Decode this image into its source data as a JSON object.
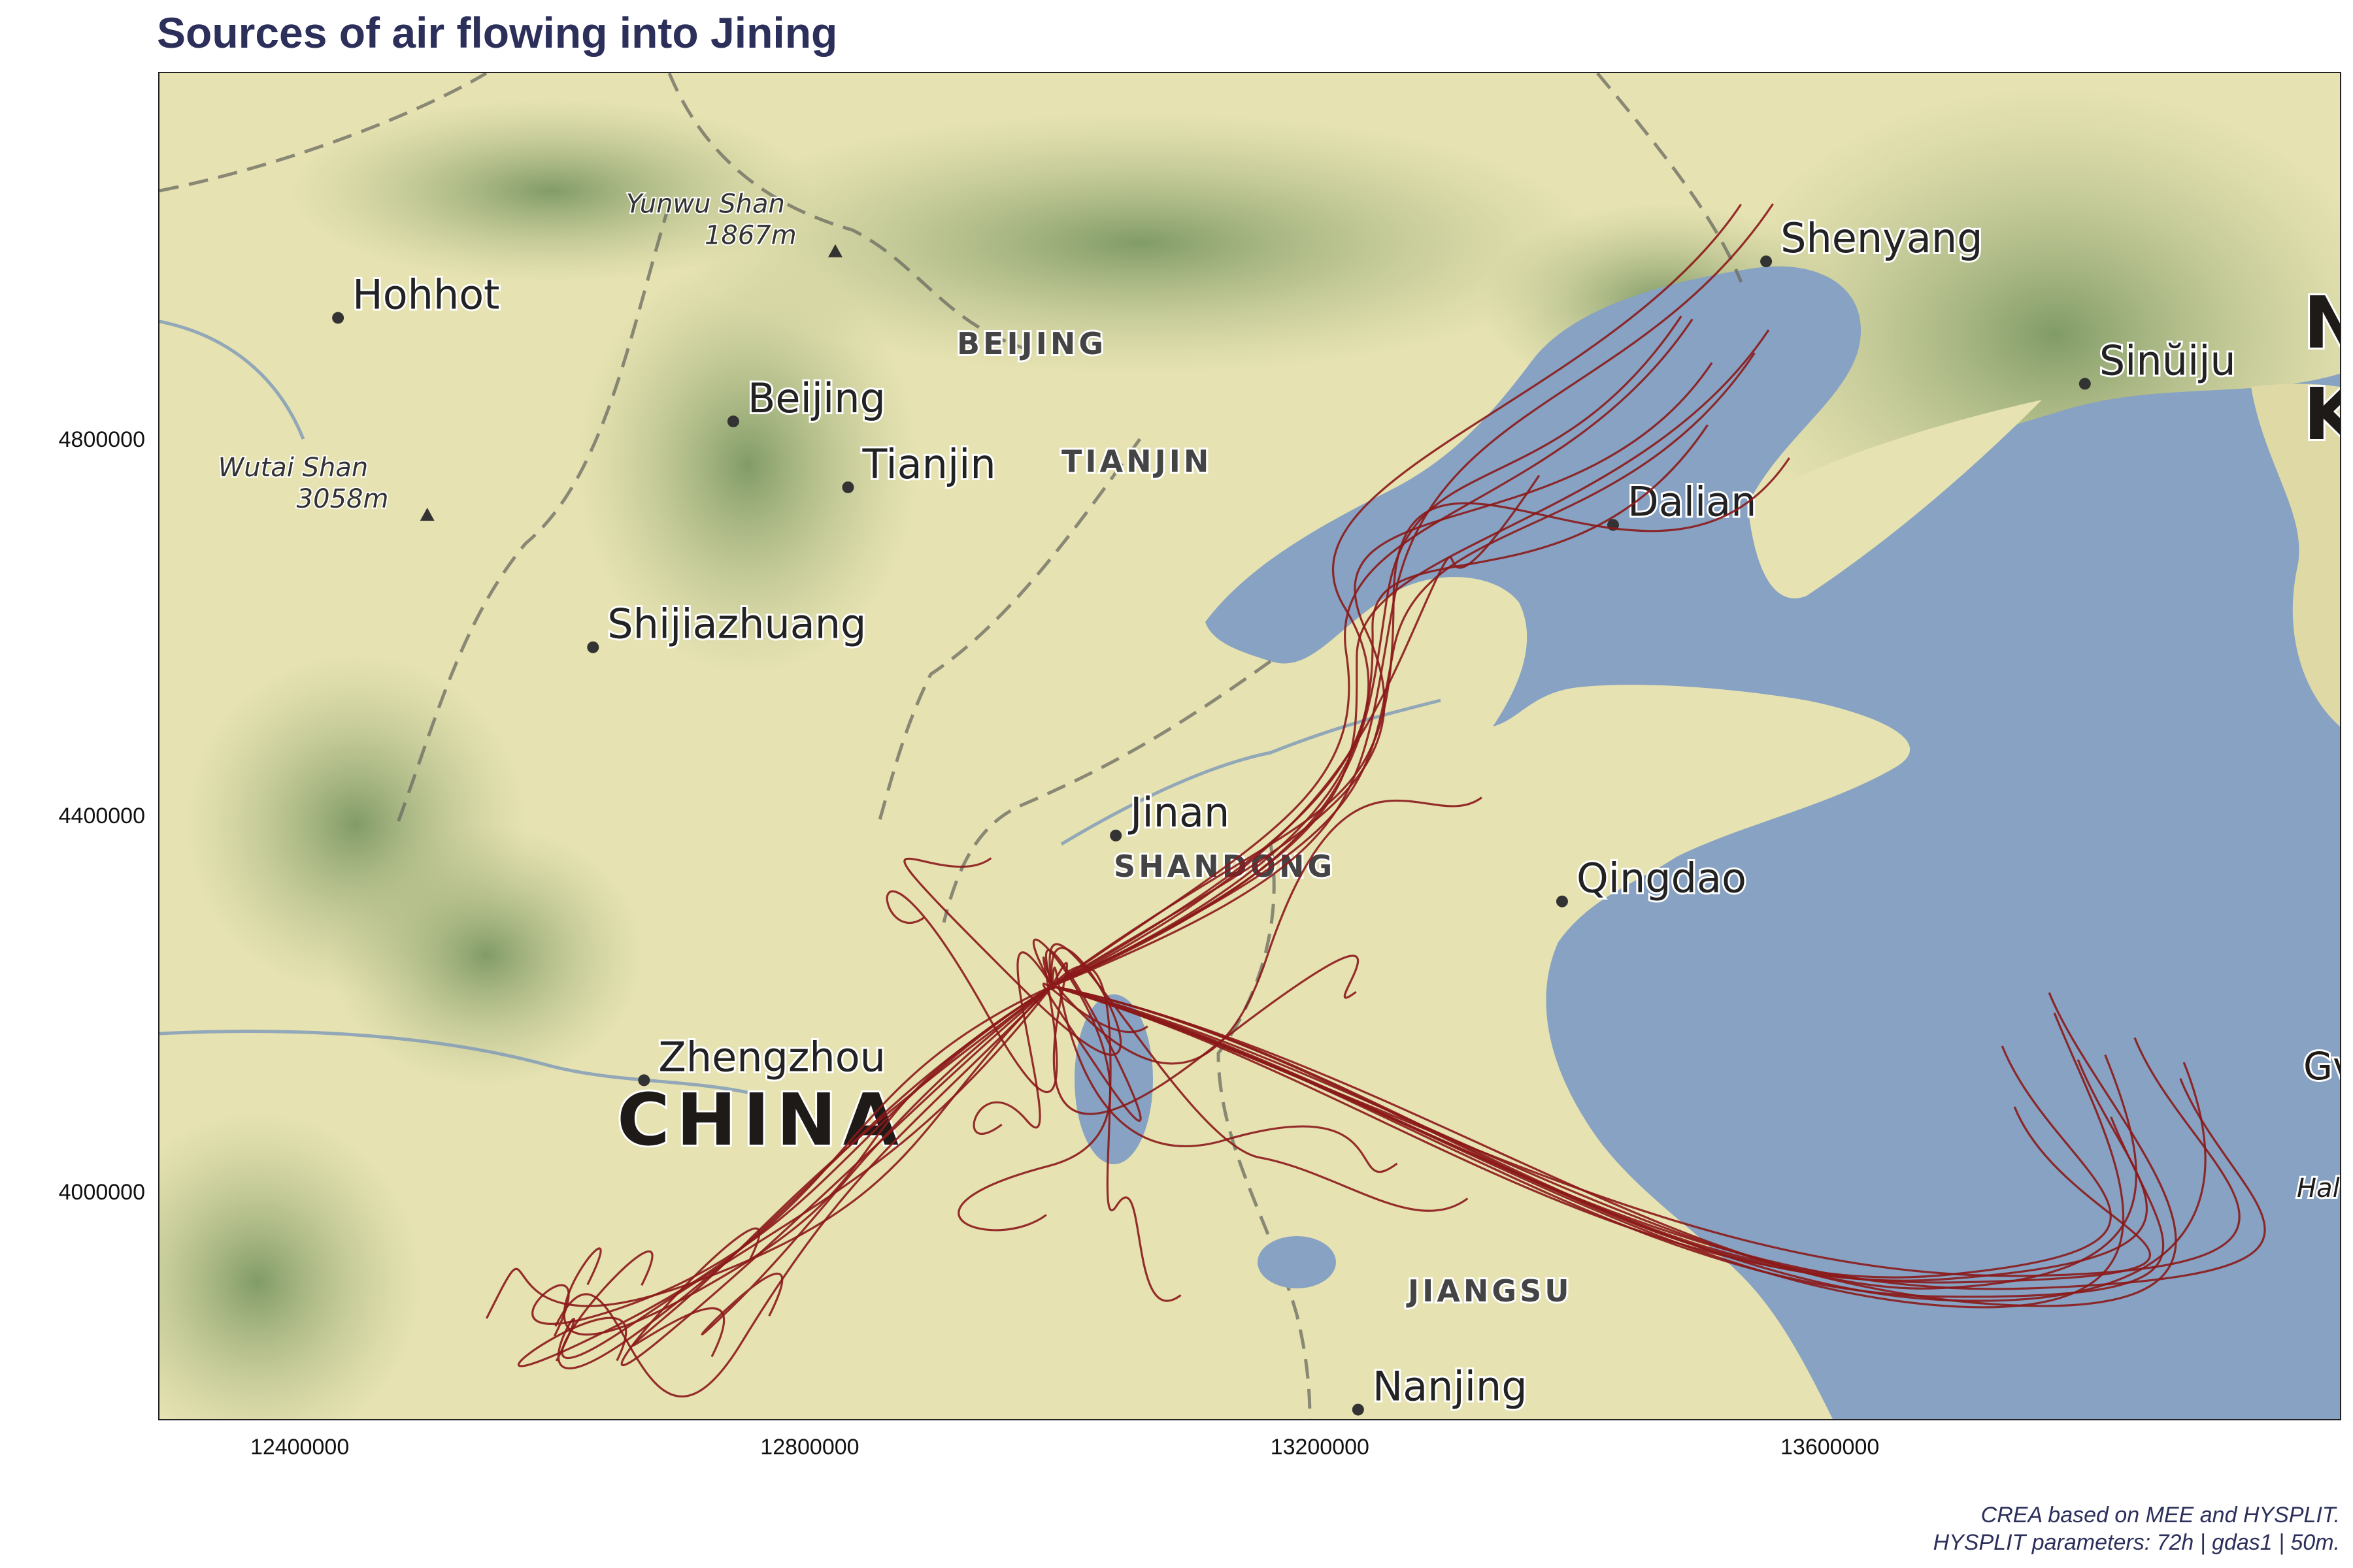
{
  "title": "Sources of air flowing into Jining",
  "map": {
    "region_labels": [
      "BEIJING",
      "TIANJIN",
      "SHANDONG",
      "JIANGSU"
    ],
    "cities": [
      {
        "name": "Shenyang",
        "x": 13550000,
        "y": 4990000
      },
      {
        "name": "Hohhot",
        "x": 12430000,
        "y": 4930000
      },
      {
        "name": "Sinŭiju",
        "x": 13800000,
        "y": 4860000
      },
      {
        "name": "Beijing",
        "x": 12740000,
        "y": 4820000
      },
      {
        "name": "Tianjin",
        "x": 12830000,
        "y": 4750000
      },
      {
        "name": "Dalian",
        "x": 13430000,
        "y": 4710000
      },
      {
        "name": "Shijiazhuang",
        "x": 12630000,
        "y": 4580000
      },
      {
        "name": "Jinan",
        "x": 13040000,
        "y": 4380000
      },
      {
        "name": "Qingdao",
        "x": 13390000,
        "y": 4310000
      },
      {
        "name": "Zhengzhou",
        "x": 12670000,
        "y": 4120000
      },
      {
        "name": "Nanjing",
        "x": 13230000,
        "y": 3770000
      }
    ],
    "country_label": "CHINA",
    "peaks": [
      {
        "name": "Yunwu Shan",
        "elev": "1867m",
        "x": 12820000,
        "y": 5000000
      },
      {
        "name": "Wutai Shan",
        "elev": "3058m",
        "x": 12500000,
        "y": 4720000
      }
    ],
    "edge_labels": [
      "N",
      "K",
      "Gv",
      "Hal"
    ],
    "colors": {
      "land": "#e6e2b2",
      "sea": "#87a2c2",
      "trajectory": "#8b1a1a"
    }
  },
  "axes": {
    "x_ticks": [
      "12400000",
      "12800000",
      "13200000",
      "13600000"
    ],
    "y_ticks": [
      "4800000",
      "4400000",
      "4000000"
    ],
    "xlim": [
      12290000,
      14000000
    ],
    "ylim": [
      3760000,
      5190000
    ]
  },
  "chart_data": {
    "type": "trajectory-map",
    "origin": {
      "name": "Jining",
      "x": 12990000,
      "y": 4220000
    },
    "trajectory_count": 40,
    "line_color": "#8b1a1a"
  },
  "caption": {
    "line1": "CREA based on MEE and HYSPLIT.",
    "line2": "HYSPLIT parameters: 72h | gdas1 | 50m."
  }
}
